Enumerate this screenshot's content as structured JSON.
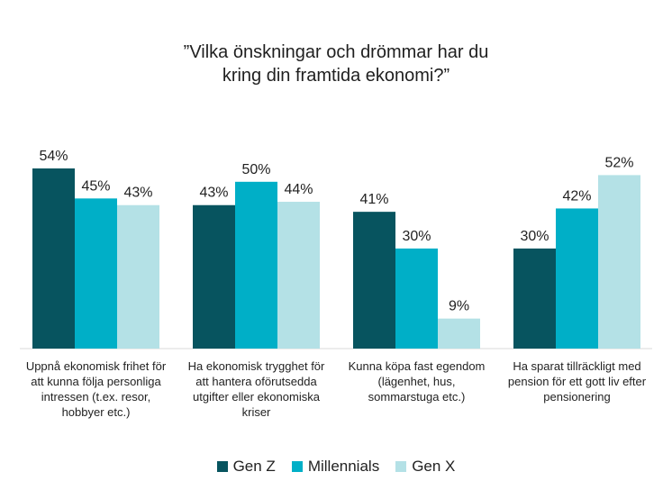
{
  "chart_data": {
    "type": "bar",
    "title_lines": [
      "”Vilka önskningar och drömmar har du",
      "kring din framtida ekonomi?”"
    ],
    "categories": [
      "Uppnå ekonomisk frihet för att kunna följa personliga intressen (t.ex. resor, hobbyer etc.)",
      "Ha ekonomisk trygghet för att hantera oförutsedda utgifter eller ekonomiska kriser",
      "Kunna köpa fast egendom (lägenhet, hus, sommarstuga etc.)",
      "Ha sparat tillräckligt med pension för ett gott liv efter pensionering"
    ],
    "category_lines": [
      [
        "Uppnå ekonomisk frihet för",
        "att kunna följa personliga",
        "intressen (t.ex. resor,",
        "hobbyer etc.)"
      ],
      [
        "Ha ekonomisk trygghet för",
        "att hantera oförutsedda",
        "utgifter eller ekonomiska",
        "kriser"
      ],
      [
        "Kunna köpa fast egendom",
        "(lägenhet, hus,",
        "sommarstuga etc.)"
      ],
      [
        "Ha sparat tillräckligt med",
        "pension för ett gott liv efter",
        "pensionering"
      ]
    ],
    "series": [
      {
        "name": "Gen Z",
        "color": "#07545f",
        "values": [
          54,
          43,
          41,
          30
        ],
        "labels": [
          "54%",
          "43%",
          "41%",
          "30%"
        ]
      },
      {
        "name": "Millennials",
        "color": "#00afc7",
        "values": [
          45,
          50,
          30,
          42
        ],
        "labels": [
          "45%",
          "50%",
          "30%",
          "42%"
        ]
      },
      {
        "name": "Gen X",
        "color": "#b4e1e6",
        "values": [
          43,
          44,
          9,
          52
        ],
        "labels": [
          "43%",
          "44%",
          "9%",
          "52%"
        ]
      }
    ],
    "ylim": [
      0,
      54
    ],
    "grid": false,
    "legend_position": "bottom"
  }
}
